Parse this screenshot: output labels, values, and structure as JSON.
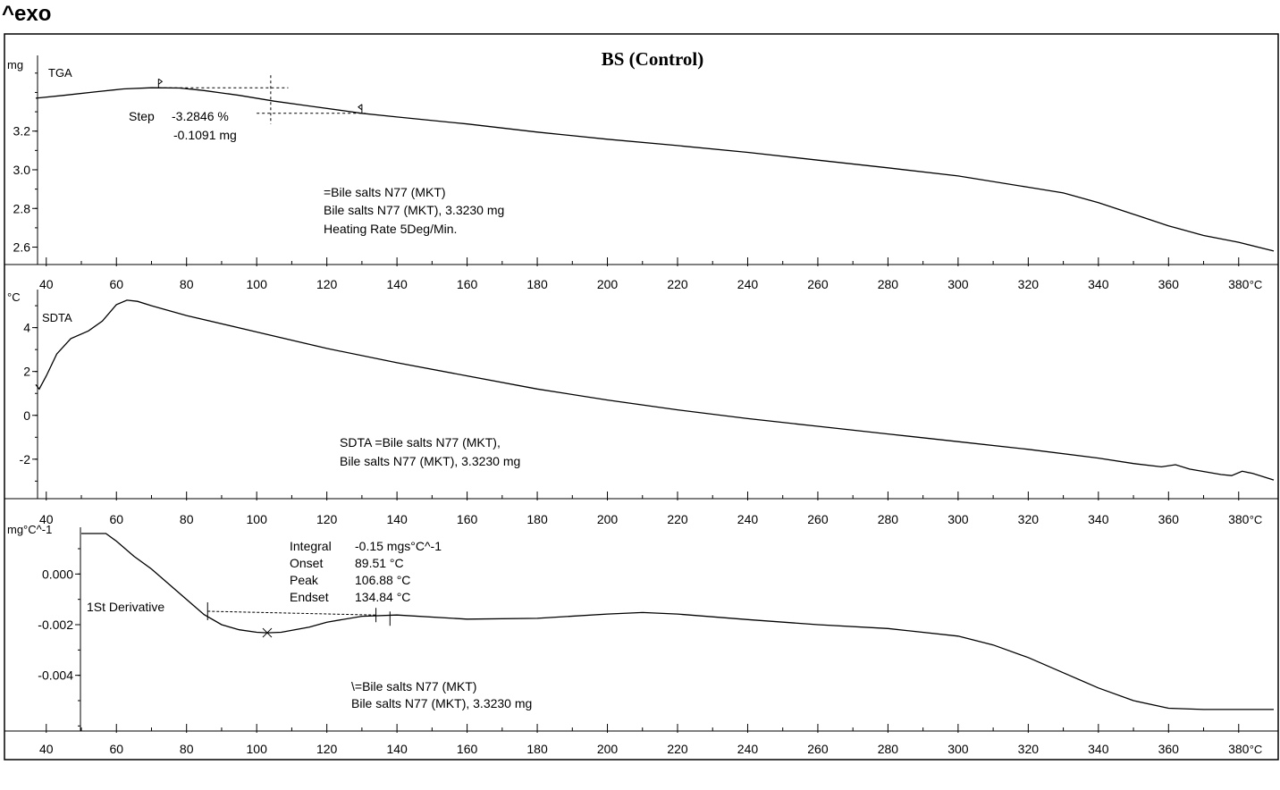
{
  "header": {
    "exo_label": "^exo"
  },
  "chart_data": {
    "type": "line",
    "title": "BS (Control)",
    "x_unit_label": "°C",
    "x_range": [
      37,
      390
    ],
    "x_ticks": [
      40,
      60,
      80,
      100,
      120,
      140,
      160,
      180,
      200,
      220,
      240,
      260,
      280,
      300,
      320,
      340,
      360,
      380
    ],
    "panels": [
      {
        "id": "tga",
        "series_label": "TGA",
        "unit": "mg",
        "ylim": [
          2.51,
          3.61
        ],
        "y_ticks": [
          2.6,
          2.8,
          3.0,
          3.2
        ],
        "y_tick_labels": [
          "2.6",
          "2.8",
          "3.0",
          "3.2"
        ],
        "points": [
          [
            37,
            3.37
          ],
          [
            45,
            3.385
          ],
          [
            55,
            3.405
          ],
          [
            62,
            3.418
          ],
          [
            70,
            3.424
          ],
          [
            78,
            3.423
          ],
          [
            85,
            3.41
          ],
          [
            95,
            3.385
          ],
          [
            105,
            3.355
          ],
          [
            115,
            3.33
          ],
          [
            125,
            3.305
          ],
          [
            130,
            3.292
          ],
          [
            140,
            3.273
          ],
          [
            160,
            3.237
          ],
          [
            180,
            3.195
          ],
          [
            200,
            3.158
          ],
          [
            220,
            3.125
          ],
          [
            240,
            3.09
          ],
          [
            260,
            3.05
          ],
          [
            280,
            3.01
          ],
          [
            300,
            2.968
          ],
          [
            320,
            2.91
          ],
          [
            330,
            2.88
          ],
          [
            340,
            2.83
          ],
          [
            350,
            2.77
          ],
          [
            360,
            2.71
          ],
          [
            370,
            2.66
          ],
          [
            380,
            2.625
          ],
          [
            390,
            2.58
          ]
        ],
        "annotations": {
          "step": {
            "label": "Step",
            "percent": "-3.2846 %",
            "mass": "-0.1091 mg"
          },
          "sample": [
            "=Bile salts N77 (MKT)",
            "Bile salts N77 (MKT), 3.3230 mg",
            "Heating Rate 5Deg/Min."
          ]
        }
      },
      {
        "id": "sdta",
        "series_label": "SDTA",
        "unit": "°C",
        "ylim": [
          -3.8,
          5.9
        ],
        "y_ticks": [
          -2,
          0,
          2,
          4
        ],
        "y_tick_labels": [
          "-2",
          "0",
          "2",
          "4"
        ],
        "points": [
          [
            37,
            1.4
          ],
          [
            38,
            1.2
          ],
          [
            40,
            1.8
          ],
          [
            43,
            2.8
          ],
          [
            47,
            3.5
          ],
          [
            52,
            3.85
          ],
          [
            56,
            4.3
          ],
          [
            60,
            5.05
          ],
          [
            63,
            5.25
          ],
          [
            66,
            5.2
          ],
          [
            70,
            5.0
          ],
          [
            80,
            4.55
          ],
          [
            100,
            3.8
          ],
          [
            120,
            3.05
          ],
          [
            140,
            2.4
          ],
          [
            160,
            1.8
          ],
          [
            180,
            1.2
          ],
          [
            200,
            0.7
          ],
          [
            220,
            0.25
          ],
          [
            240,
            -0.15
          ],
          [
            260,
            -0.5
          ],
          [
            280,
            -0.85
          ],
          [
            300,
            -1.2
          ],
          [
            320,
            -1.55
          ],
          [
            340,
            -1.95
          ],
          [
            350,
            -2.2
          ],
          [
            358,
            -2.35
          ],
          [
            362,
            -2.25
          ],
          [
            366,
            -2.45
          ],
          [
            375,
            -2.7
          ],
          [
            378,
            -2.75
          ],
          [
            381,
            -2.55
          ],
          [
            384,
            -2.65
          ],
          [
            390,
            -2.95
          ]
        ],
        "annotations": {
          "sample": [
            "SDTA =Bile salts N77 (MKT),",
            "Bile salts N77 (MKT), 3.3230 mg"
          ]
        }
      },
      {
        "id": "derivative",
        "series_label": "1St Derivative",
        "unit": "mg°C^-1",
        "ylim": [
          -0.0062,
          0.0022
        ],
        "y_ticks": [
          -0.004,
          -0.002,
          0.0
        ],
        "y_tick_labels": [
          "-0.004",
          "-0.002",
          "0.000"
        ],
        "points": [
          [
            50,
            0.0016
          ],
          [
            57,
            0.0016
          ],
          [
            60,
            0.0013
          ],
          [
            65,
            0.0007
          ],
          [
            70,
            0.0002
          ],
          [
            75,
            -0.0004
          ],
          [
            80,
            -0.001
          ],
          [
            85,
            -0.0016
          ],
          [
            90,
            -0.002
          ],
          [
            95,
            -0.0022
          ],
          [
            100,
            -0.0023
          ],
          [
            103,
            -0.00232
          ],
          [
            107,
            -0.0023
          ],
          [
            115,
            -0.0021
          ],
          [
            120,
            -0.0019
          ],
          [
            130,
            -0.00167
          ],
          [
            140,
            -0.00162
          ],
          [
            160,
            -0.00178
          ],
          [
            180,
            -0.00175
          ],
          [
            200,
            -0.00158
          ],
          [
            210,
            -0.00152
          ],
          [
            220,
            -0.00158
          ],
          [
            240,
            -0.0018
          ],
          [
            260,
            -0.002
          ],
          [
            280,
            -0.00215
          ],
          [
            300,
            -0.00245
          ],
          [
            310,
            -0.0028
          ],
          [
            320,
            -0.0033
          ],
          [
            330,
            -0.0039
          ],
          [
            340,
            -0.0045
          ],
          [
            350,
            -0.005
          ],
          [
            360,
            -0.0053
          ],
          [
            370,
            -0.00535
          ],
          [
            390,
            -0.00535
          ]
        ],
        "annotations": {
          "integral": {
            "label": "Integral",
            "value": "-0.15 mgs°C^-1"
          },
          "onset": {
            "label": "Onset",
            "value": "89.51 °C"
          },
          "peak": {
            "label": "Peak",
            "value": "106.88 °C"
          },
          "endset": {
            "label": "Endset",
            "value": "134.84 °C"
          },
          "sample": [
            "\\=Bile salts N77 (MKT)",
            "Bile salts N77 (MKT), 3.3230 mg"
          ]
        }
      }
    ]
  }
}
